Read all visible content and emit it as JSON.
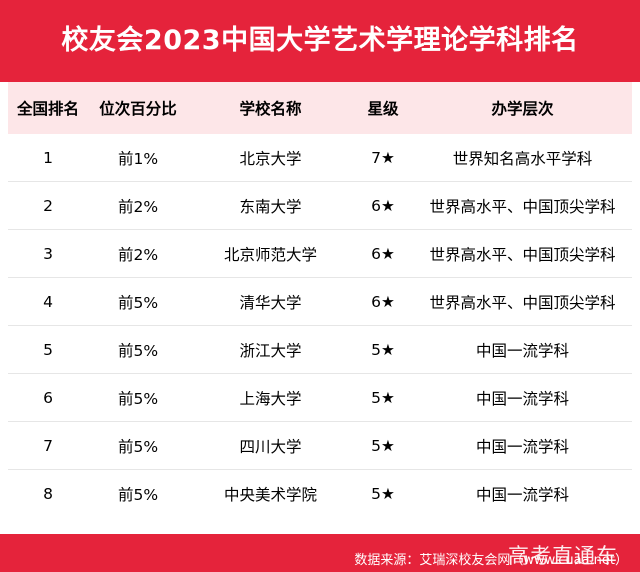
{
  "title": "校友会2023中国大学艺术学理论学科排名",
  "table": {
    "headers": [
      "全国排名",
      "位次百分比",
      "学校名称",
      "星级",
      "办学层次"
    ],
    "rows": [
      {
        "rank": "1",
        "pct": "前1%",
        "school": "北京大学",
        "star": "7★",
        "level": "世界知名高水平学科"
      },
      {
        "rank": "2",
        "pct": "前2%",
        "school": "东南大学",
        "star": "6★",
        "level": "世界高水平、中国顶尖学科"
      },
      {
        "rank": "3",
        "pct": "前2%",
        "school": "北京师范大学",
        "star": "6★",
        "level": "世界高水平、中国顶尖学科"
      },
      {
        "rank": "4",
        "pct": "前5%",
        "school": "清华大学",
        "star": "6★",
        "level": "世界高水平、中国顶尖学科"
      },
      {
        "rank": "5",
        "pct": "前5%",
        "school": "浙江大学",
        "star": "5★",
        "level": "中国一流学科"
      },
      {
        "rank": "6",
        "pct": "前5%",
        "school": "上海大学",
        "star": "5★",
        "level": "中国一流学科"
      },
      {
        "rank": "7",
        "pct": "前5%",
        "school": "四川大学",
        "star": "5★",
        "level": "中国一流学科"
      },
      {
        "rank": "8",
        "pct": "前5%",
        "school": "中央美术学院",
        "star": "5★",
        "level": "中国一流学科"
      }
    ]
  },
  "footer": {
    "watermark": "高考直通车",
    "source": "数据来源：艾瑞深校友会网（www.cuaa.net）"
  },
  "colors": {
    "accent": "#e5233b",
    "header_bg": "#fde6e8"
  }
}
